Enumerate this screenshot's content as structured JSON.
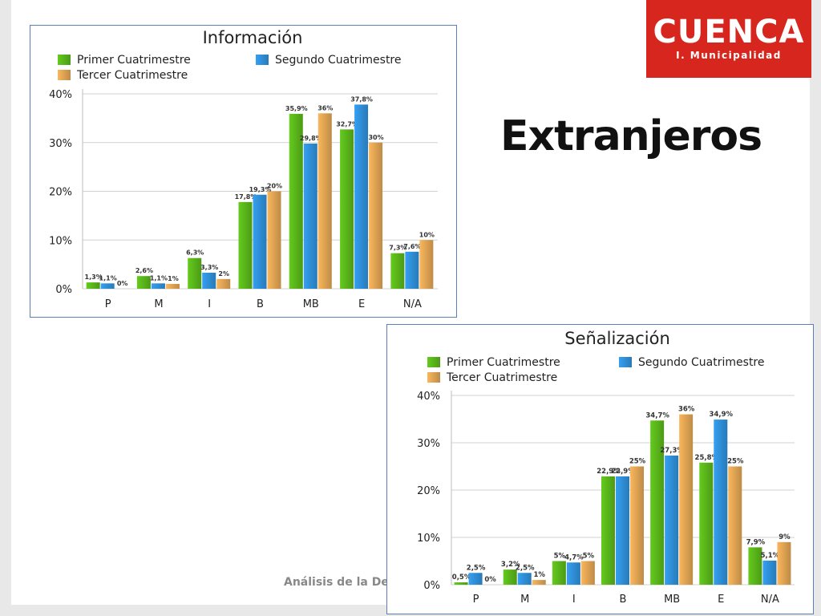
{
  "slide": {
    "title": "Extranjeros",
    "footer": "Análisis de la Dema"
  },
  "logo": {
    "wordmark": "CUENCA",
    "subtitle": "I. Municipalidad"
  },
  "colors": {
    "series": [
      "#59b51a",
      "#2f8fd8",
      "#dfa352"
    ],
    "accent_red": "#d7261e",
    "chart_border": "#5b7fb8"
  },
  "chart_data": [
    {
      "type": "bar",
      "title": "Información",
      "categories": [
        "P",
        "M",
        "I",
        "B",
        "MB",
        "E",
        "N/A"
      ],
      "series": [
        {
          "name": "Primer Cuatrimestre",
          "values": [
            1.3,
            2.6,
            6.3,
            17.8,
            35.9,
            32.7,
            7.3
          ],
          "labels": [
            "1,3%",
            "2,6%",
            "6,3%",
            "17,8%",
            "35,9%",
            "32,7%",
            "7,3%"
          ]
        },
        {
          "name": "Segundo Cuatrimestre",
          "values": [
            1.1,
            1.1,
            3.3,
            19.3,
            29.8,
            37.8,
            7.6
          ],
          "labels": [
            "1,1%",
            "1,1%",
            "3,3%",
            "19,3%",
            "29,8%",
            "37,8%",
            "7,6%"
          ]
        },
        {
          "name": "Tercer Cuatrimestre",
          "values": [
            0,
            1,
            2,
            20,
            36,
            30,
            10
          ],
          "labels": [
            "0%",
            "1%",
            "2%",
            "20%",
            "36%",
            "30%",
            "10%"
          ]
        }
      ],
      "yticks": [
        "0%",
        "10%",
        "20%",
        "30%",
        "40%"
      ],
      "ylim": [
        0,
        40
      ],
      "grid": true,
      "legend": "top"
    },
    {
      "type": "bar",
      "title": "Señalización",
      "categories": [
        "P",
        "M",
        "I",
        "B",
        "MB",
        "E",
        "N/A"
      ],
      "series": [
        {
          "name": "Primer Cuatrimestre",
          "values": [
            0.5,
            3.2,
            5,
            22.9,
            34.7,
            25.8,
            7.9
          ],
          "labels": [
            "0,5%",
            "3,2%",
            "5%",
            "22,9%",
            "34,7%",
            "25,8%",
            "7,9%"
          ]
        },
        {
          "name": "Segundo Cuatrimestre",
          "values": [
            2.5,
            2.5,
            4.7,
            22.9,
            27.3,
            34.9,
            5.1
          ],
          "labels": [
            "2,5%",
            "2,5%",
            "4,7%",
            "22,9%",
            "27,3%",
            "34,9%",
            "5,1%"
          ]
        },
        {
          "name": "Tercer Cuatrimestre",
          "values": [
            0,
            1,
            5,
            25,
            36,
            25,
            9
          ],
          "labels": [
            "0%",
            "1%",
            "5%",
            "25%",
            "36%",
            "25%",
            "9%"
          ]
        }
      ],
      "yticks": [
        "0%",
        "10%",
        "20%",
        "30%",
        "40%"
      ],
      "ylim": [
        0,
        40
      ],
      "grid": true,
      "legend": "top"
    }
  ]
}
